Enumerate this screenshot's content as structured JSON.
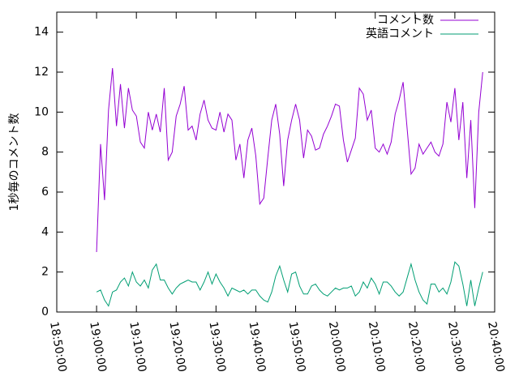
{
  "chart_data": {
    "type": "line",
    "ylabel": "1秒毎のコメント数",
    "x": [
      "19:00:00",
      "19:01:00",
      "19:02:00",
      "19:03:00",
      "19:04:00",
      "19:05:00",
      "19:06:00",
      "19:07:00",
      "19:08:00",
      "19:09:00",
      "19:10:00",
      "19:11:00",
      "19:12:00",
      "19:13:00",
      "19:14:00",
      "19:15:00",
      "19:16:00",
      "19:17:00",
      "19:18:00",
      "19:19:00",
      "19:20:00",
      "19:21:00",
      "19:22:00",
      "19:23:00",
      "19:24:00",
      "19:25:00",
      "19:26:00",
      "19:27:00",
      "19:28:00",
      "19:29:00",
      "19:30:00",
      "19:31:00",
      "19:32:00",
      "19:33:00",
      "19:34:00",
      "19:35:00",
      "19:36:00",
      "19:37:00",
      "19:38:00",
      "19:39:00",
      "19:40:00",
      "19:41:00",
      "19:42:00",
      "19:43:00",
      "19:44:00",
      "19:45:00",
      "19:46:00",
      "19:47:00",
      "19:48:00",
      "19:49:00",
      "19:50:00",
      "19:51:00",
      "19:52:00",
      "19:53:00",
      "19:54:00",
      "19:55:00",
      "19:56:00",
      "19:57:00",
      "19:58:00",
      "19:59:00",
      "20:00:00",
      "20:01:00",
      "20:02:00",
      "20:03:00",
      "20:04:00",
      "20:05:00",
      "20:06:00",
      "20:07:00",
      "20:08:00",
      "20:09:00",
      "20:10:00",
      "20:11:00",
      "20:12:00",
      "20:13:00",
      "20:14:00",
      "20:15:00",
      "20:16:00",
      "20:17:00",
      "20:18:00",
      "20:19:00",
      "20:20:00",
      "20:21:00",
      "20:22:00",
      "20:23:00",
      "20:24:00",
      "20:25:00",
      "20:26:00",
      "20:27:00",
      "20:28:00",
      "20:29:00",
      "20:30:00",
      "20:31:00",
      "20:32:00",
      "20:33:00",
      "20:34:00",
      "20:35:00",
      "20:36:00",
      "20:37:00"
    ],
    "series": [
      {
        "name": "コメント数",
        "color": "#9400d3",
        "values": [
          3.0,
          8.4,
          5.6,
          10.1,
          12.2,
          9.3,
          11.4,
          9.2,
          11.2,
          10.1,
          9.8,
          8.5,
          8.2,
          10.0,
          9.1,
          9.9,
          9.0,
          11.2,
          7.6,
          8.0,
          9.8,
          10.4,
          11.3,
          9.1,
          9.3,
          8.6,
          9.9,
          10.6,
          9.6,
          9.2,
          9.1,
          10.0,
          9.0,
          9.9,
          9.6,
          7.6,
          8.4,
          6.7,
          8.6,
          9.2,
          7.8,
          5.4,
          5.7,
          7.7,
          9.6,
          10.4,
          8.9,
          6.3,
          8.6,
          9.6,
          10.4,
          9.6,
          7.7,
          9.1,
          8.8,
          8.1,
          8.2,
          8.9,
          9.3,
          9.8,
          10.4,
          10.3,
          8.6,
          7.5,
          8.1,
          8.7,
          11.2,
          10.9,
          9.6,
          10.1,
          8.2,
          8.0,
          8.4,
          7.9,
          8.5,
          9.9,
          10.6,
          11.5,
          9.2,
          6.9,
          7.2,
          8.4,
          7.9,
          8.2,
          8.5,
          8.0,
          7.8,
          8.4,
          10.5,
          9.5,
          11.2,
          8.6,
          10.5,
          6.7,
          9.6,
          5.2,
          10.0,
          12.0
        ]
      },
      {
        "name": "英語コメント",
        "color": "#009e73",
        "values": [
          1.0,
          1.1,
          0.6,
          0.3,
          1.0,
          1.1,
          1.5,
          1.7,
          1.3,
          2.0,
          1.5,
          1.3,
          1.6,
          1.2,
          2.1,
          2.4,
          1.6,
          1.6,
          1.2,
          0.9,
          1.2,
          1.4,
          1.5,
          1.6,
          1.5,
          1.5,
          1.1,
          1.5,
          2.0,
          1.4,
          1.9,
          1.5,
          1.2,
          0.8,
          1.2,
          1.1,
          1.0,
          1.1,
          0.9,
          1.1,
          1.1,
          0.8,
          0.6,
          0.5,
          1.0,
          1.8,
          2.3,
          1.6,
          1.0,
          1.9,
          2.0,
          1.3,
          0.9,
          0.9,
          1.3,
          1.4,
          1.1,
          0.9,
          0.8,
          1.0,
          1.2,
          1.1,
          1.2,
          1.2,
          1.3,
          0.8,
          1.0,
          1.5,
          1.2,
          1.7,
          1.4,
          0.9,
          1.5,
          1.5,
          1.3,
          1.0,
          0.8,
          1.0,
          1.7,
          2.4,
          1.6,
          1.0,
          0.6,
          0.4,
          1.4,
          1.4,
          1.0,
          1.2,
          0.9,
          1.5,
          2.5,
          2.3,
          1.4,
          0.3,
          1.6,
          0.3,
          1.2,
          2.0
        ]
      }
    ],
    "xlim": [
      "18:50:00",
      "20:40:00"
    ],
    "xticks": [
      "18:50:00",
      "19:00:00",
      "19:10:00",
      "19:20:00",
      "19:30:00",
      "19:40:00",
      "19:50:00",
      "20:00:00",
      "20:10:00",
      "20:20:00",
      "20:30:00",
      "20:40:00"
    ],
    "ylim": [
      0,
      15
    ],
    "yticks": [
      0,
      2,
      4,
      6,
      8,
      10,
      12,
      14
    ],
    "legend": "top-right"
  }
}
